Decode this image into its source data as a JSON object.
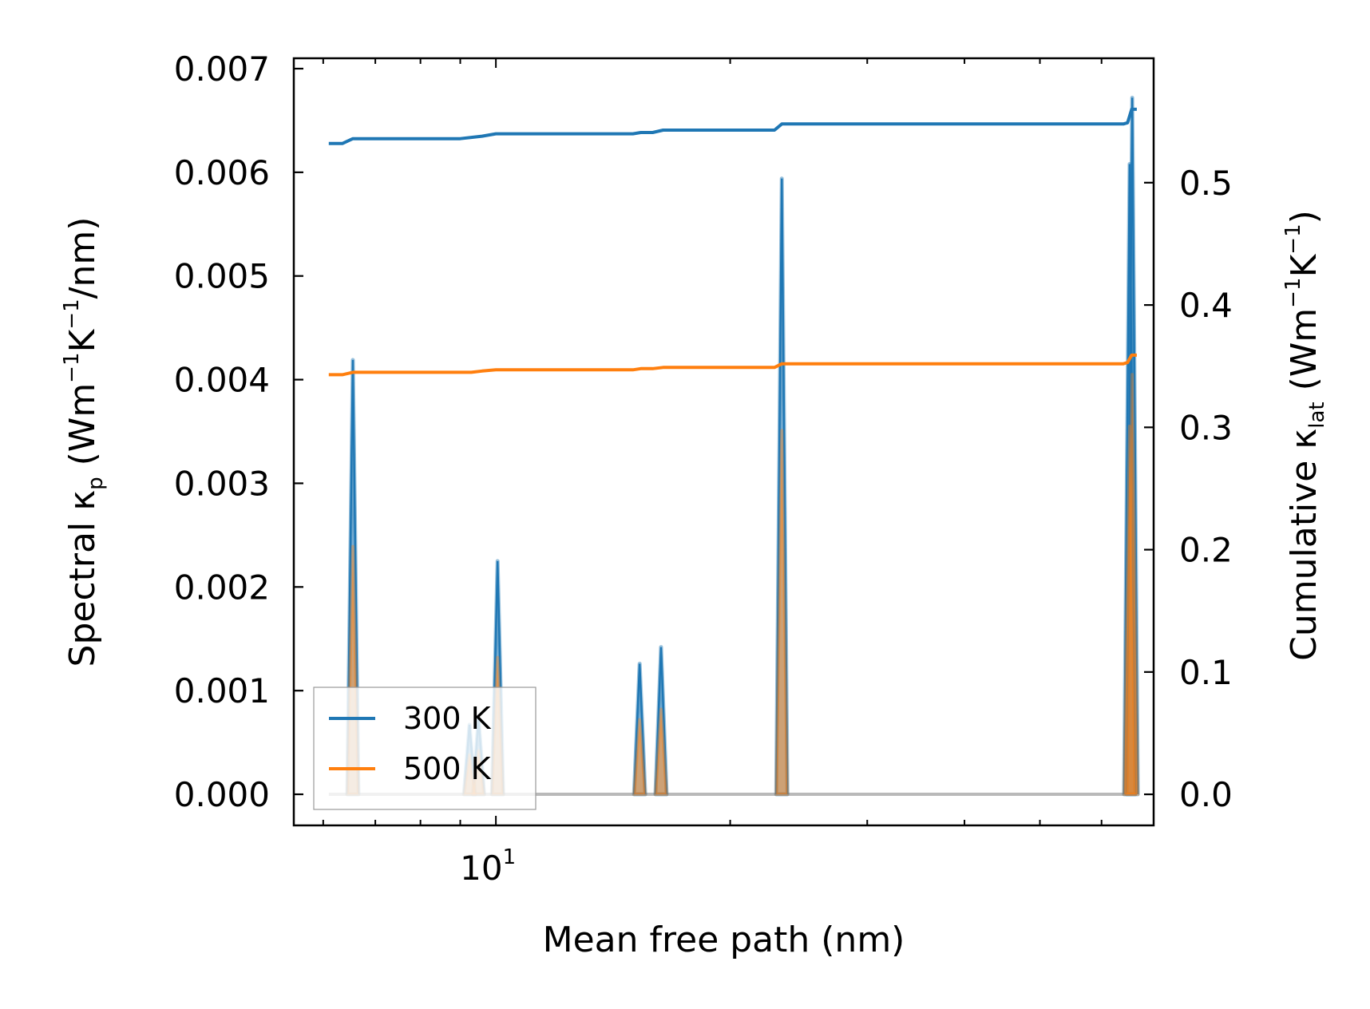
{
  "chart_data": {
    "type": "line",
    "title": "",
    "xlabel": "Mean free path (nm)",
    "xscale": "log",
    "xlim": [
      5.5,
      70
    ],
    "x_tick_labels": [
      {
        "value": 10,
        "base": "10",
        "exp": "1"
      }
    ],
    "ylabel_left": {
      "pre": "Spectral κ",
      "sub": "p",
      "mid1": " (Wm",
      "sup1": "−1",
      "mid2": "K",
      "sup2": "−1",
      "post": "/nm)"
    },
    "ylim_left": [
      -0.0003,
      0.0071
    ],
    "yticks_left": [
      "0.000",
      "0.001",
      "0.002",
      "0.003",
      "0.004",
      "0.005",
      "0.006",
      "0.007"
    ],
    "ylabel_right": {
      "pre": "Cumulative κ",
      "sub": "lat",
      "mid1": " (Wm",
      "sup1": "−1",
      "mid2": "K",
      "sup2": "−1",
      "post": ")"
    },
    "ylim_right": [
      -0.0254,
      0.6017
    ],
    "yticks_right": [
      "0.0",
      "0.1",
      "0.2",
      "0.3",
      "0.4",
      "0.5"
    ],
    "colors": {
      "300 K": "#1f77b4",
      "500 K": "#ff7f0e"
    },
    "legend": {
      "position": "lower-left",
      "entries": [
        "300 K",
        "500 K"
      ]
    },
    "spectral_peaks": [
      {
        "x": 6.55,
        "300 K": 0.00419,
        "500 K": 0.00239
      },
      {
        "x": 9.25,
        "300 K": 0.00067,
        "500 K": 0.00038
      },
      {
        "x": 9.5,
        "300 K": 0.00073,
        "500 K": 0.00042
      },
      {
        "x": 10.05,
        "300 K": 0.00225,
        "500 K": 0.00132
      },
      {
        "x": 15.3,
        "300 K": 0.00126,
        "500 K": 0.00072
      },
      {
        "x": 16.3,
        "300 K": 0.00142,
        "500 K": 0.00082
      },
      {
        "x": 23.3,
        "300 K": 0.00594,
        "500 K": 0.00351
      },
      {
        "x": 65.2,
        "300 K": 0.00608,
        "500 K": 0.00355
      },
      {
        "x": 65.7,
        "300 K": 0.00672,
        "500 K": 0.00405
      }
    ],
    "series": [
      {
        "name": "300 K",
        "axis": "right",
        "x": [
          6.1,
          6.35,
          6.55,
          9.0,
          9.3,
          9.6,
          10.0,
          10.2,
          15.0,
          15.35,
          15.9,
          16.4,
          22.8,
          23.3,
          64.0,
          64.8,
          65.6,
          66.6
        ],
        "y": [
          0.532,
          0.532,
          0.536,
          0.536,
          0.537,
          0.538,
          0.54,
          0.54,
          0.54,
          0.541,
          0.541,
          0.543,
          0.543,
          0.548,
          0.548,
          0.549,
          0.56,
          0.56
        ]
      },
      {
        "name": "500 K",
        "axis": "right",
        "x": [
          6.1,
          6.35,
          6.55,
          9.0,
          9.3,
          9.6,
          10.0,
          10.2,
          15.0,
          15.35,
          15.9,
          16.4,
          22.8,
          23.3,
          64.0,
          64.8,
          65.6,
          66.6
        ],
        "y": [
          0.343,
          0.343,
          0.345,
          0.345,
          0.345,
          0.346,
          0.347,
          0.347,
          0.347,
          0.348,
          0.348,
          0.349,
          0.349,
          0.352,
          0.352,
          0.353,
          0.359,
          0.359
        ]
      }
    ]
  }
}
